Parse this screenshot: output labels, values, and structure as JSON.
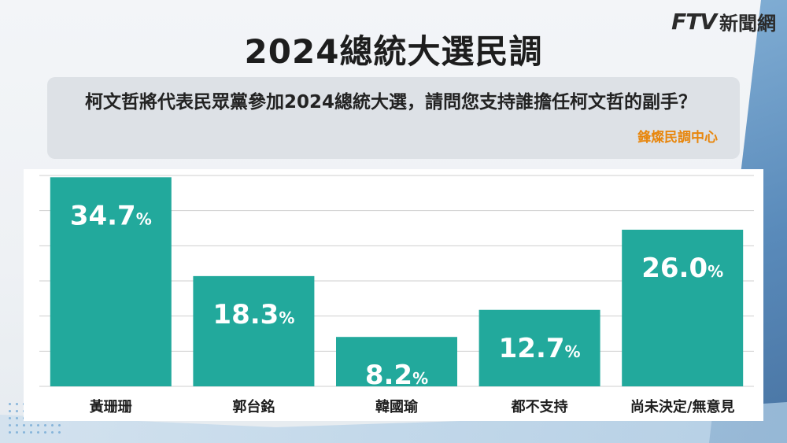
{
  "header": {
    "title": "2024總統大選民調",
    "logo_mark": "FTV",
    "logo_text": "新聞網"
  },
  "question": {
    "text": "柯文哲將代表民眾黨參加2024總統大選，請問您支持誰擔任柯文哲的副手？",
    "source": "鋒燦民調中心"
  },
  "colors": {
    "bar": "#22a99c",
    "source": "#e8860c"
  },
  "chart_data": {
    "type": "bar",
    "title": "2024總統大選民調",
    "categories": [
      "黃珊珊",
      "郭台銘",
      "韓國瑜",
      "都不支持",
      "尚未決定/無意見"
    ],
    "values": [
      34.7,
      18.3,
      8.2,
      12.7,
      26.0
    ],
    "value_labels": [
      "34.7",
      "18.3",
      "8.2",
      "12.7",
      "26.0"
    ],
    "unit": "%",
    "ylim": [
      0,
      35
    ],
    "grid": true,
    "xlabel": "",
    "ylabel": ""
  }
}
